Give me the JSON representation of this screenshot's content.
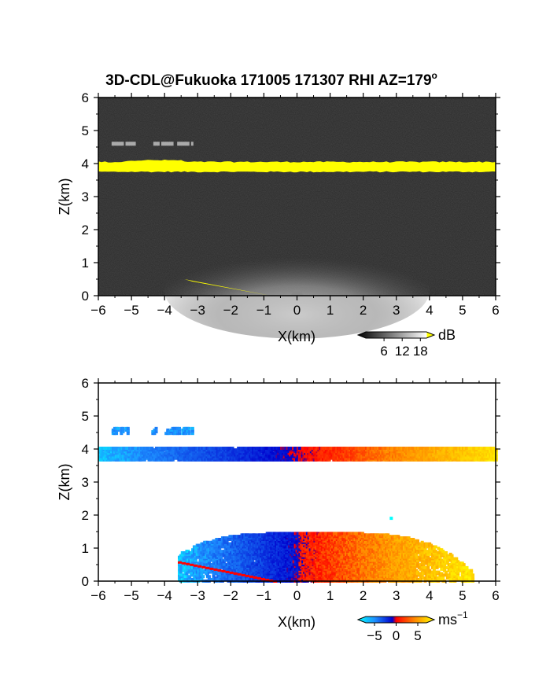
{
  "figure": {
    "title_main": "3D-CDL@Fukuoka 171005 171307 RHI AZ=179",
    "title_sup": "o"
  },
  "chart_data": [
    {
      "type": "heatmap",
      "quantity": "reflectivity",
      "xlabel": "X(km)",
      "ylabel": "Z(km)",
      "xlim": [
        -6,
        6
      ],
      "ylim": [
        0,
        6
      ],
      "xticks": [
        "−6",
        "−5",
        "−4",
        "−3",
        "−2",
        "−1",
        "0",
        "1",
        "2",
        "3",
        "4",
        "5",
        "6"
      ],
      "yticks": [
        "0",
        "1",
        "2",
        "3",
        "4",
        "5",
        "6"
      ],
      "colormap": "grayscale with yellow above 18 dB",
      "colorbar": {
        "unit": "dB",
        "ticks": [
          "6",
          "12",
          "18"
        ],
        "range": [
          0,
          20
        ]
      },
      "features": [
        {
          "name": "cloud layer",
          "x": [
            -6,
            6
          ],
          "z_center": 3.9,
          "thickness": 0.3,
          "value_dB": 20
        },
        {
          "name": "upper fragment",
          "x": [
            -5.6,
            -3.2
          ],
          "z_center": 4.6,
          "thickness": 0.1,
          "value_dB": 12
        },
        {
          "name": "boundary layer echo",
          "x": [
            -4,
            4
          ],
          "z_top": 1.5,
          "value_dB": 12
        },
        {
          "name": "ground clutter",
          "x": [
            -3.4,
            -0.8
          ],
          "z": [
            0.5,
            0.0
          ],
          "value_dB": 20
        }
      ]
    },
    {
      "type": "heatmap",
      "quantity": "doppler velocity",
      "xlabel": "X(km)",
      "ylabel": "Z(km)",
      "xlim": [
        -6,
        6
      ],
      "ylim": [
        0,
        6
      ],
      "xticks": [
        "−6",
        "−5",
        "−4",
        "−3",
        "−2",
        "−1",
        "0",
        "1",
        "2",
        "3",
        "4",
        "5",
        "6"
      ],
      "yticks": [
        "0",
        "1",
        "2",
        "3",
        "4",
        "5",
        "6"
      ],
      "colormap": "cyan-blue (negative) to red-orange-yellow (positive)",
      "colorbar": {
        "unit": "ms",
        "unit_sup": "−1",
        "ticks": [
          "−5",
          "0",
          "5"
        ],
        "range": [
          -7,
          7
        ]
      },
      "features": [
        {
          "name": "cloud layer",
          "x": [
            -6,
            6
          ],
          "z_center": 3.9,
          "velocity_range": [
            -6,
            6
          ]
        },
        {
          "name": "upper fragment",
          "x": [
            -5.6,
            -3.2
          ],
          "z_center": 4.6,
          "velocity_ms": -5
        },
        {
          "name": "boundary layer echo",
          "x": [
            -3.6,
            5.3
          ],
          "z_top": 1.5,
          "velocity_range": [
            -6,
            6
          ]
        }
      ]
    }
  ]
}
